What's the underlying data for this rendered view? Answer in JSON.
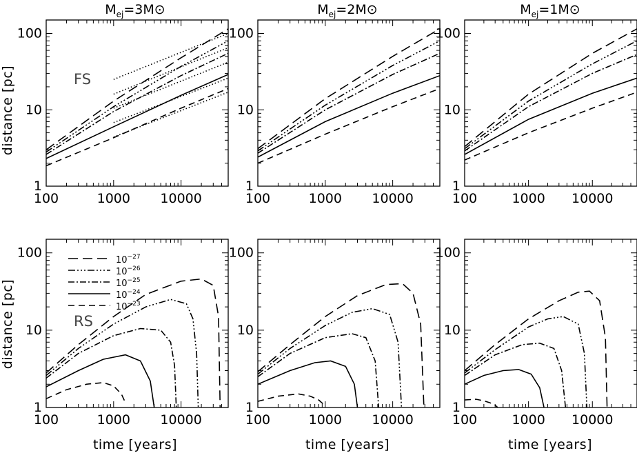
{
  "figure": {
    "column_titles": [
      {
        "base": "M",
        "sub": "ej",
        "rest": "=3M",
        "sym": "⊙"
      },
      {
        "base": "M",
        "sub": "ej",
        "rest": "=2M",
        "sym": "⊙"
      },
      {
        "base": "M",
        "sub": "ej",
        "rest": "=1M",
        "sym": "⊙"
      }
    ],
    "row_labels": [
      "FS",
      "RS"
    ],
    "ylabel": "distance [pc]",
    "xlabel": "time [years]",
    "x_tick_labels": [
      "100",
      "1000",
      "10000"
    ],
    "y_tick_labels": [
      "1",
      "10",
      "100"
    ],
    "legend": [
      {
        "dash": "long-dash",
        "base": "10",
        "exp": "−27"
      },
      {
        "dash": "dash-dot-dot-dot",
        "base": "10",
        "exp": "−26"
      },
      {
        "dash": "dash-dot",
        "base": "10",
        "exp": "−25"
      },
      {
        "dash": "solid",
        "base": "10",
        "exp": "−24"
      },
      {
        "dash": "dashed",
        "base": "10",
        "exp": "−23"
      }
    ]
  },
  "chart_data": [
    {
      "type": "line",
      "panel": "FS, Mej=3",
      "xscale": "log",
      "yscale": "log",
      "xlim": [
        100,
        50000
      ],
      "ylim": [
        1,
        150
      ],
      "series": [
        {
          "style": "long-dash",
          "x": [
            100,
            1000,
            10000,
            50000
          ],
          "y": [
            3.0,
            13,
            48,
            115
          ]
        },
        {
          "style": "dash-dot-dot-dot",
          "x": [
            100,
            1000,
            10000,
            50000
          ],
          "y": [
            2.8,
            11,
            37,
            80
          ]
        },
        {
          "style": "dash-dot",
          "x": [
            100,
            1000,
            10000,
            50000
          ],
          "y": [
            2.6,
            9.5,
            28,
            55
          ]
        },
        {
          "style": "solid",
          "x": [
            100,
            1000,
            10000,
            50000
          ],
          "y": [
            2.3,
            6.0,
            15.5,
            29
          ]
        },
        {
          "style": "dashed",
          "x": [
            100,
            1000,
            10000,
            50000
          ],
          "y": [
            1.85,
            4.3,
            10.5,
            19
          ]
        },
        {
          "style": "dotted",
          "x": [
            1000,
            50000
          ],
          "y": [
            25,
            100
          ]
        },
        {
          "style": "dotted",
          "x": [
            1000,
            50000
          ],
          "y": [
            16,
            65
          ]
        },
        {
          "style": "dotted",
          "x": [
            1000,
            50000
          ],
          "y": [
            10.5,
            42
          ]
        },
        {
          "style": "dotted",
          "x": [
            1000,
            50000
          ],
          "y": [
            6.8,
            26
          ]
        },
        {
          "style": "dotted",
          "x": [
            1000,
            50000
          ],
          "y": [
            4.4,
            17
          ]
        }
      ]
    },
    {
      "type": "line",
      "panel": "FS, Mej=2",
      "xscale": "log",
      "yscale": "log",
      "xlim": [
        100,
        50000
      ],
      "ylim": [
        1,
        150
      ],
      "series": [
        {
          "style": "long-dash",
          "x": [
            100,
            1000,
            10000,
            50000
          ],
          "y": [
            3.1,
            14,
            50,
            115
          ]
        },
        {
          "style": "dash-dot-dot-dot",
          "x": [
            100,
            1000,
            10000,
            50000
          ],
          "y": [
            2.9,
            11.5,
            38,
            80
          ]
        },
        {
          "style": "dash-dot",
          "x": [
            100,
            1000,
            10000,
            50000
          ],
          "y": [
            2.7,
            10,
            29,
            55
          ]
        },
        {
          "style": "solid",
          "x": [
            100,
            1000,
            10000,
            50000
          ],
          "y": [
            2.4,
            7.0,
            16.5,
            28
          ]
        },
        {
          "style": "dashed",
          "x": [
            100,
            1000,
            10000,
            50000
          ],
          "y": [
            2.0,
            4.8,
            11,
            19
          ]
        }
      ]
    },
    {
      "type": "line",
      "panel": "FS, Mej=1",
      "xscale": "log",
      "yscale": "log",
      "xlim": [
        100,
        50000
      ],
      "ylim": [
        1,
        150
      ],
      "series": [
        {
          "style": "long-dash",
          "x": [
            100,
            1000,
            10000,
            50000
          ],
          "y": [
            3.3,
            16,
            55,
            115
          ]
        },
        {
          "style": "dash-dot-dot-dot",
          "x": [
            100,
            1000,
            10000,
            50000
          ],
          "y": [
            3.1,
            13,
            40,
            80
          ]
        },
        {
          "style": "dash-dot",
          "x": [
            100,
            1000,
            10000,
            50000
          ],
          "y": [
            2.9,
            11,
            30,
            53
          ]
        },
        {
          "style": "solid",
          "x": [
            100,
            1000,
            10000,
            50000
          ],
          "y": [
            2.6,
            7.5,
            16.5,
            26
          ]
        },
        {
          "style": "dashed",
          "x": [
            100,
            1000,
            10000,
            50000
          ],
          "y": [
            2.2,
            5.0,
            10.5,
            17
          ]
        }
      ]
    },
    {
      "type": "line",
      "panel": "RS, Mej=3",
      "xscale": "log",
      "yscale": "log",
      "xlim": [
        100,
        50000
      ],
      "ylim": [
        1,
        150
      ],
      "series": [
        {
          "style": "long-dash",
          "x": [
            100,
            300,
            1000,
            3000,
            10000,
            20000,
            30000,
            36000,
            38000
          ],
          "y": [
            2.8,
            6.5,
            15,
            29,
            43,
            46,
            38,
            15,
            1
          ]
        },
        {
          "style": "dash-dot-dot-dot",
          "x": [
            100,
            300,
            1000,
            3000,
            7000,
            12000,
            15000,
            17000,
            18000
          ],
          "y": [
            2.6,
            5.8,
            12,
            20,
            25,
            22,
            14,
            5,
            1
          ]
        },
        {
          "style": "dash-dot",
          "x": [
            100,
            300,
            1000,
            2500,
            5000,
            7000,
            8000,
            8500
          ],
          "y": [
            2.4,
            5,
            8.5,
            10.5,
            10,
            7,
            3.5,
            1
          ]
        },
        {
          "style": "solid",
          "x": [
            100,
            300,
            700,
            1500,
            2500,
            3500,
            4000
          ],
          "y": [
            1.85,
            3,
            4.2,
            4.8,
            4,
            2.2,
            1
          ]
        },
        {
          "style": "dashed",
          "x": [
            100,
            200,
            400,
            700,
            1000,
            1300,
            1500
          ],
          "y": [
            1.3,
            1.7,
            2.0,
            2.1,
            1.9,
            1.5,
            1.15
          ]
        }
      ]
    },
    {
      "type": "line",
      "panel": "RS, Mej=2",
      "xscale": "log",
      "yscale": "log",
      "xlim": [
        100,
        50000
      ],
      "ylim": [
        1,
        150
      ],
      "series": [
        {
          "style": "long-dash",
          "x": [
            100,
            300,
            1000,
            3000,
            8000,
            14000,
            20000,
            26000,
            29000
          ],
          "y": [
            2.9,
            6.5,
            15,
            28,
            39,
            40,
            30,
            12,
            1
          ]
        },
        {
          "style": "dash-dot-dot-dot",
          "x": [
            100,
            300,
            1000,
            2500,
            5000,
            9000,
            12000,
            13500
          ],
          "y": [
            2.7,
            5.8,
            11.5,
            17,
            19,
            16,
            7,
            1
          ]
        },
        {
          "style": "dash-dot",
          "x": [
            100,
            300,
            1000,
            2500,
            4000,
            5500,
            6200
          ],
          "y": [
            2.5,
            5,
            8,
            9,
            8,
            4,
            1
          ]
        },
        {
          "style": "solid",
          "x": [
            100,
            300,
            700,
            1200,
            2000,
            2700,
            3000
          ],
          "y": [
            2.0,
            3.0,
            3.8,
            4.0,
            3.4,
            2.0,
            1
          ]
        },
        {
          "style": "dashed",
          "x": [
            100,
            200,
            400,
            600,
            800,
            1000
          ],
          "y": [
            1.2,
            1.4,
            1.5,
            1.4,
            1.25,
            1.05
          ]
        }
      ]
    },
    {
      "type": "line",
      "panel": "RS, Mej=1",
      "xscale": "log",
      "yscale": "log",
      "xlim": [
        100,
        50000
      ],
      "ylim": [
        1,
        150
      ],
      "series": [
        {
          "style": "long-dash",
          "x": [
            100,
            300,
            1000,
            3000,
            6000,
            9000,
            13000,
            16000,
            17000
          ],
          "y": [
            3.0,
            6.5,
            14,
            24,
            31,
            32,
            24,
            8,
            1
          ]
        },
        {
          "style": "dash-dot-dot-dot",
          "x": [
            100,
            300,
            1000,
            2000,
            3500,
            6000,
            7500,
            8200
          ],
          "y": [
            2.8,
            5.6,
            11,
            14,
            15,
            12,
            5,
            1
          ]
        },
        {
          "style": "dash-dot",
          "x": [
            100,
            300,
            800,
            1500,
            2500,
            3300,
            3800
          ],
          "y": [
            2.6,
            4.8,
            6.5,
            6.8,
            5.8,
            3.0,
            1
          ]
        },
        {
          "style": "solid",
          "x": [
            100,
            200,
            400,
            700,
            1100,
            1500,
            1750
          ],
          "y": [
            2.0,
            2.6,
            3.0,
            3.1,
            2.7,
            1.8,
            1
          ]
        },
        {
          "style": "dashed",
          "x": [
            100,
            150,
            200,
            250,
            300,
            330
          ],
          "y": [
            1.25,
            1.28,
            1.22,
            1.15,
            1.07,
            1.0
          ]
        }
      ]
    }
  ]
}
